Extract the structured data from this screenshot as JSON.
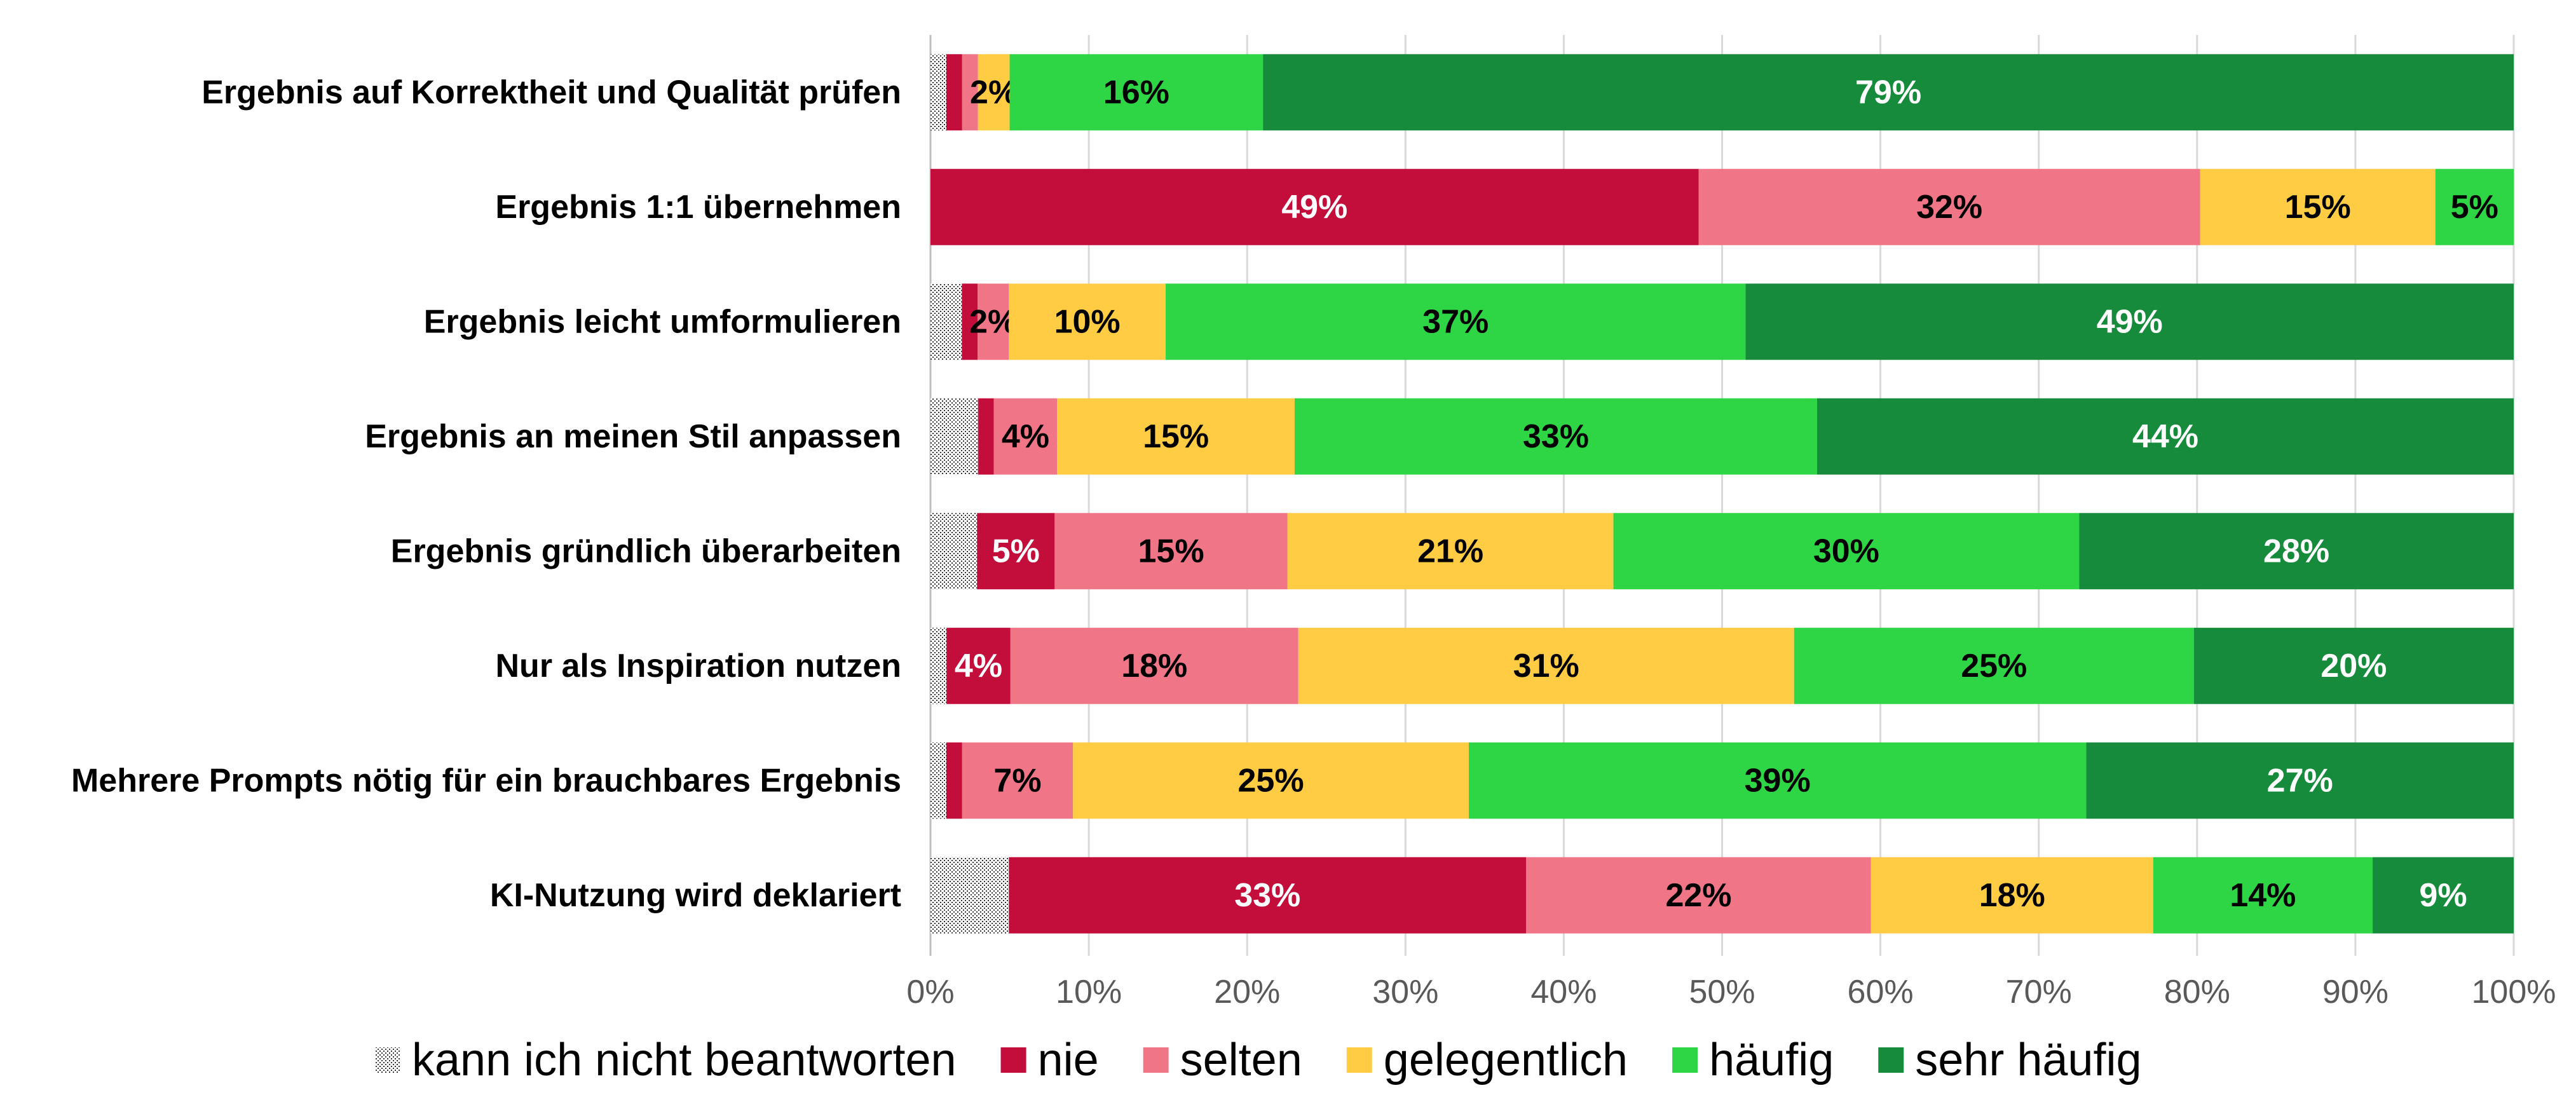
{
  "chart_data": {
    "type": "bar",
    "orientation": "horizontal",
    "stacked": true,
    "categories": [
      "Ergebnis auf Korrektheit und Qualität prüfen",
      "Ergebnis 1:1 übernehmen",
      "Ergebnis leicht umformulieren",
      "Ergebnis an meinen Stil anpassen",
      "Ergebnis gründlich überarbeiten",
      "Nur als Inspiration nutzen",
      "Mehrere Prompts nötig für ein brauchbares Ergebnis",
      "KI-Nutzung wird deklariert"
    ],
    "series": [
      {
        "name": "kann ich nicht beantworten",
        "color": "#d9d9d9",
        "pattern": "dotted",
        "values": [
          1,
          0,
          2,
          3,
          3,
          1,
          1,
          5
        ],
        "labels": [
          "",
          "",
          "",
          "",
          "",
          "",
          "",
          ""
        ]
      },
      {
        "name": "nie",
        "color": "#c30d3b",
        "values": [
          1,
          49,
          1,
          1,
          5,
          4,
          1,
          33
        ],
        "labels": [
          "",
          "49%",
          "",
          "",
          "5%",
          "4%",
          "",
          "33%"
        ]
      },
      {
        "name": "selten",
        "color": "#f07687",
        "values": [
          1,
          32,
          2,
          4,
          15,
          18,
          7,
          22
        ],
        "labels": [
          "",
          "32%",
          "2%",
          "4%",
          "15%",
          "18%",
          "7%",
          "22%"
        ]
      },
      {
        "name": "gelegentlich",
        "color": "#ffcc44",
        "values": [
          2,
          15,
          10,
          15,
          21,
          31,
          25,
          18
        ],
        "labels": [
          "2%",
          "15%",
          "10%",
          "15%",
          "21%",
          "31%",
          "25%",
          "18%"
        ]
      },
      {
        "name": "häufig",
        "color": "#2ed545",
        "values": [
          16,
          5,
          37,
          33,
          30,
          25,
          39,
          14
        ],
        "labels": [
          "16%",
          "5%",
          "37%",
          "33%",
          "30%",
          "25%",
          "39%",
          "14%"
        ]
      },
      {
        "name": "sehr häufig",
        "color": "#168b3c",
        "values": [
          79,
          0,
          49,
          44,
          28,
          20,
          27,
          9
        ],
        "labels": [
          "79%",
          "",
          "49%",
          "44%",
          "28%",
          "20%",
          "27%",
          "9%"
        ]
      }
    ],
    "label_colors": {
      "kann ich nicht beantworten": "#000000",
      "nie": "#ffffff",
      "selten": "#000000",
      "gelegentlich": "#000000",
      "häufig": "#000000",
      "sehr häufig": "#ffffff"
    },
    "x_ticks": [
      "0%",
      "10%",
      "20%",
      "30%",
      "40%",
      "50%",
      "60%",
      "70%",
      "80%",
      "90%",
      "100%"
    ],
    "xlim": [
      0,
      100
    ],
    "grid": true,
    "legend_position": "bottom"
  }
}
